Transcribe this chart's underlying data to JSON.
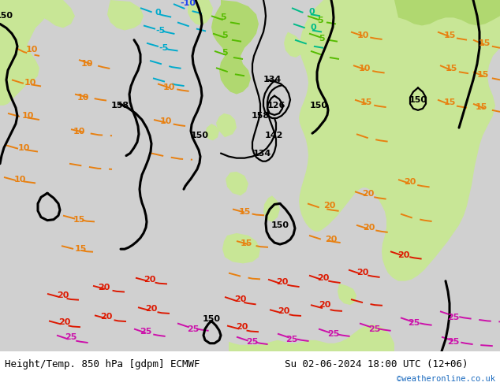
{
  "title_left": "Height/Temp. 850 hPa [gdpm] ECMWF",
  "title_right": "Su 02-06-2024 18:00 UTC (12+06)",
  "credit": "©weatheronline.co.uk",
  "land_green": "#c8e696",
  "land_green2": "#b0d870",
  "sea_gray": "#d0d0d0",
  "bottom_bar_color": "#f0f0f0",
  "title_font_size": 9,
  "credit_color": "#1a6abf",
  "figsize": [
    6.34,
    4.9
  ],
  "dpi": 100
}
